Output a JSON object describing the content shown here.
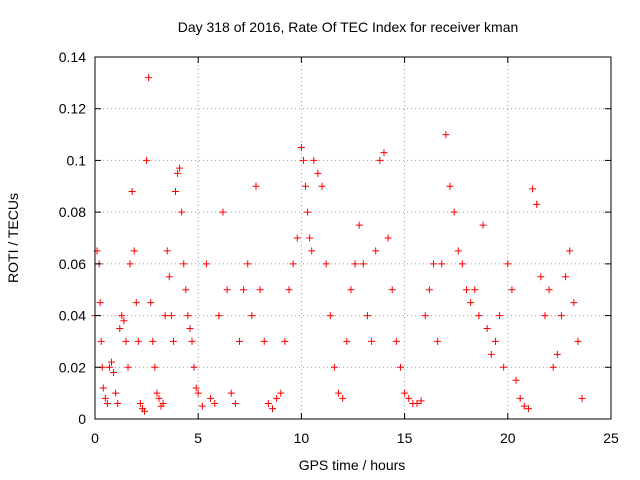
{
  "chart_data": {
    "type": "scatter",
    "title": "Day 318 of 2016, Rate Of TEC Index for receiver kman",
    "xlabel": "GPS time / hours",
    "ylabel": "ROTI / TECUs",
    "xlim": [
      0,
      25
    ],
    "ylim": [
      0,
      0.14
    ],
    "xticks": [
      0,
      5,
      10,
      15,
      20,
      25
    ],
    "yticks": [
      0,
      0.02,
      0.04,
      0.06,
      0.08,
      0.1,
      0.12,
      0.14
    ],
    "xtick_labels": [
      "0",
      "5",
      "10",
      "15",
      "20",
      "25"
    ],
    "ytick_labels": [
      "0",
      "0.02",
      "0.04",
      "0.06",
      "0.08",
      "0.1",
      "0.12",
      "0.14"
    ],
    "grid": true,
    "marker": "plus",
    "color": "#ff0000",
    "series": [
      {
        "x": [
          0.0,
          0.1,
          0.2,
          0.25,
          0.3,
          0.35,
          0.4,
          0.5,
          0.6,
          0.7,
          0.8,
          0.9,
          1.0,
          1.1,
          1.2,
          1.3,
          1.4,
          1.5,
          1.6,
          1.7,
          1.8,
          1.9,
          2.0,
          2.1,
          2.2,
          2.3,
          2.4,
          2.5,
          2.6,
          2.7,
          2.8,
          2.9,
          3.0,
          3.1,
          3.2,
          3.3,
          3.4,
          3.5,
          3.6,
          3.7,
          3.8,
          3.9,
          4.0,
          4.1,
          4.2,
          4.3,
          4.4,
          4.5,
          4.6,
          4.7,
          4.8,
          4.9,
          5.0,
          5.2,
          5.4,
          5.6,
          5.8,
          6.0,
          6.2,
          6.4,
          6.6,
          6.8,
          7.0,
          7.2,
          7.4,
          7.6,
          7.8,
          8.0,
          8.2,
          8.4,
          8.6,
          8.8,
          9.0,
          9.2,
          9.4,
          9.6,
          9.8,
          10.0,
          10.1,
          10.2,
          10.3,
          10.4,
          10.5,
          10.6,
          10.8,
          11.0,
          11.2,
          11.4,
          11.6,
          11.8,
          12.0,
          12.2,
          12.4,
          12.6,
          12.8,
          13.0,
          13.2,
          13.4,
          13.6,
          13.8,
          14.0,
          14.2,
          14.4,
          14.6,
          14.8,
          15.0,
          15.2,
          15.4,
          15.6,
          15.8,
          16.0,
          16.2,
          16.4,
          16.6,
          16.8,
          17.0,
          17.2,
          17.4,
          17.6,
          17.8,
          18.0,
          18.2,
          18.4,
          18.6,
          18.8,
          19.0,
          19.2,
          19.4,
          19.6,
          19.8,
          20.0,
          20.2,
          20.4,
          20.6,
          20.8,
          21.0,
          21.2,
          21.4,
          21.6,
          21.8,
          22.0,
          22.2,
          22.4,
          22.6,
          22.8,
          23.0,
          23.2,
          23.4,
          23.6
        ],
        "y": [
          0.04,
          0.065,
          0.06,
          0.045,
          0.03,
          0.02,
          0.012,
          0.008,
          0.006,
          0.02,
          0.022,
          0.018,
          0.01,
          0.006,
          0.035,
          0.04,
          0.038,
          0.03,
          0.02,
          0.06,
          0.088,
          0.065,
          0.045,
          0.03,
          0.006,
          0.004,
          0.003,
          0.1,
          0.132,
          0.045,
          0.03,
          0.02,
          0.01,
          0.008,
          0.005,
          0.006,
          0.04,
          0.065,
          0.055,
          0.04,
          0.03,
          0.088,
          0.095,
          0.097,
          0.08,
          0.06,
          0.05,
          0.04,
          0.035,
          0.03,
          0.02,
          0.012,
          0.01,
          0.005,
          0.06,
          0.008,
          0.006,
          0.04,
          0.08,
          0.05,
          0.01,
          0.006,
          0.03,
          0.05,
          0.06,
          0.04,
          0.09,
          0.05,
          0.03,
          0.006,
          0.004,
          0.008,
          0.01,
          0.03,
          0.05,
          0.06,
          0.07,
          0.105,
          0.1,
          0.09,
          0.08,
          0.07,
          0.065,
          0.1,
          0.095,
          0.09,
          0.06,
          0.04,
          0.02,
          0.01,
          0.008,
          0.03,
          0.05,
          0.06,
          0.075,
          0.06,
          0.04,
          0.03,
          0.065,
          0.1,
          0.103,
          0.07,
          0.05,
          0.03,
          0.02,
          0.01,
          0.008,
          0.006,
          0.006,
          0.007,
          0.04,
          0.05,
          0.06,
          0.03,
          0.06,
          0.11,
          0.09,
          0.08,
          0.065,
          0.06,
          0.05,
          0.045,
          0.05,
          0.04,
          0.075,
          0.035,
          0.025,
          0.03,
          0.04,
          0.02,
          0.06,
          0.05,
          0.015,
          0.008,
          0.005,
          0.004,
          0.089,
          0.083,
          0.055,
          0.04,
          0.05,
          0.02,
          0.025,
          0.04,
          0.055,
          0.065,
          0.045,
          0.03,
          0.008
        ]
      }
    ]
  }
}
